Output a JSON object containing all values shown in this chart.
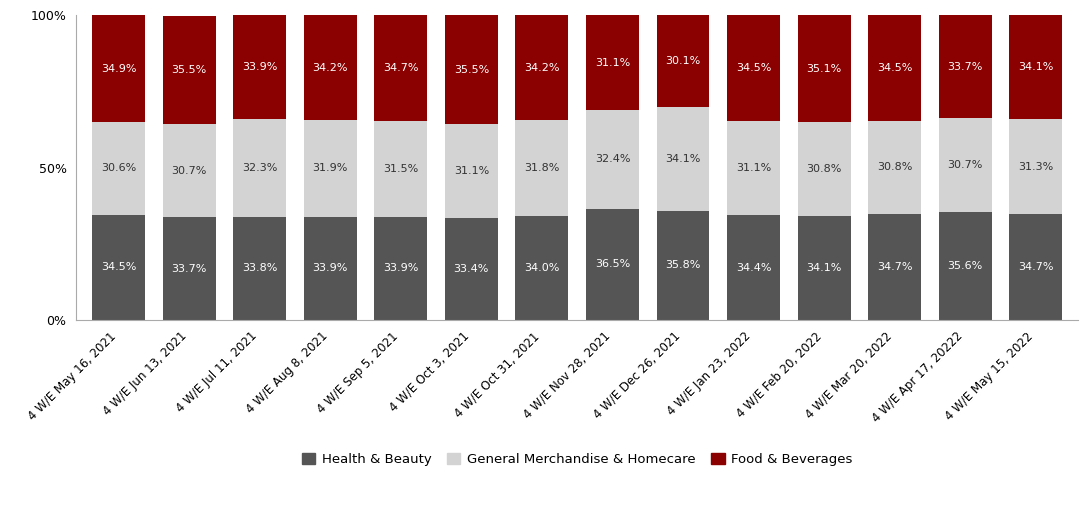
{
  "categories": [
    "4 W/E May 16, 2021",
    "4 W/E Jun 13, 2021",
    "4 W/E Jul 11, 2021",
    "4 W/E Aug 8, 2021",
    "4 W/E Sep 5, 2021",
    "4 W/E Oct 3, 2021",
    "4 W/E Oct 31, 2021",
    "4 W/E Nov 28, 2021",
    "4 W/E Dec 26, 2021",
    "4 W/E Jan 23, 2022",
    "4 W/E Feb 20, 2022",
    "4 W/E Mar 20, 2022",
    "4 W/E Apr 17, 20222",
    "4 W/E May 15, 2022"
  ],
  "health_beauty": [
    34.5,
    33.7,
    33.8,
    33.9,
    33.9,
    33.4,
    34.0,
    36.5,
    35.8,
    34.4,
    34.1,
    34.7,
    35.6,
    34.7
  ],
  "general_merch": [
    30.6,
    30.7,
    32.3,
    31.9,
    31.5,
    31.1,
    31.8,
    32.4,
    34.1,
    31.1,
    30.8,
    30.8,
    30.7,
    31.3
  ],
  "food_beverages": [
    34.9,
    35.5,
    33.9,
    34.2,
    34.7,
    35.5,
    34.2,
    31.1,
    30.1,
    34.5,
    35.1,
    34.5,
    33.7,
    34.1
  ],
  "color_health": "#555555",
  "color_general": "#d3d3d3",
  "color_food": "#8b0000",
  "bar_width": 0.75,
  "ylim": [
    0,
    100
  ],
  "yticks": [
    0,
    50,
    100
  ],
  "yticklabels": [
    "0%",
    "50%",
    "100%"
  ],
  "legend_labels": [
    "Health & Beauty",
    "General Merchandise & Homecare",
    "Food & Beverages"
  ],
  "text_color_hb": "#ffffff",
  "text_color_gm": "#333333",
  "text_color_fb": "#ffffff",
  "fontsize_bar": 8.0,
  "fontsize_tick": 9,
  "fontsize_legend": 9.5,
  "background_color": "#ffffff"
}
